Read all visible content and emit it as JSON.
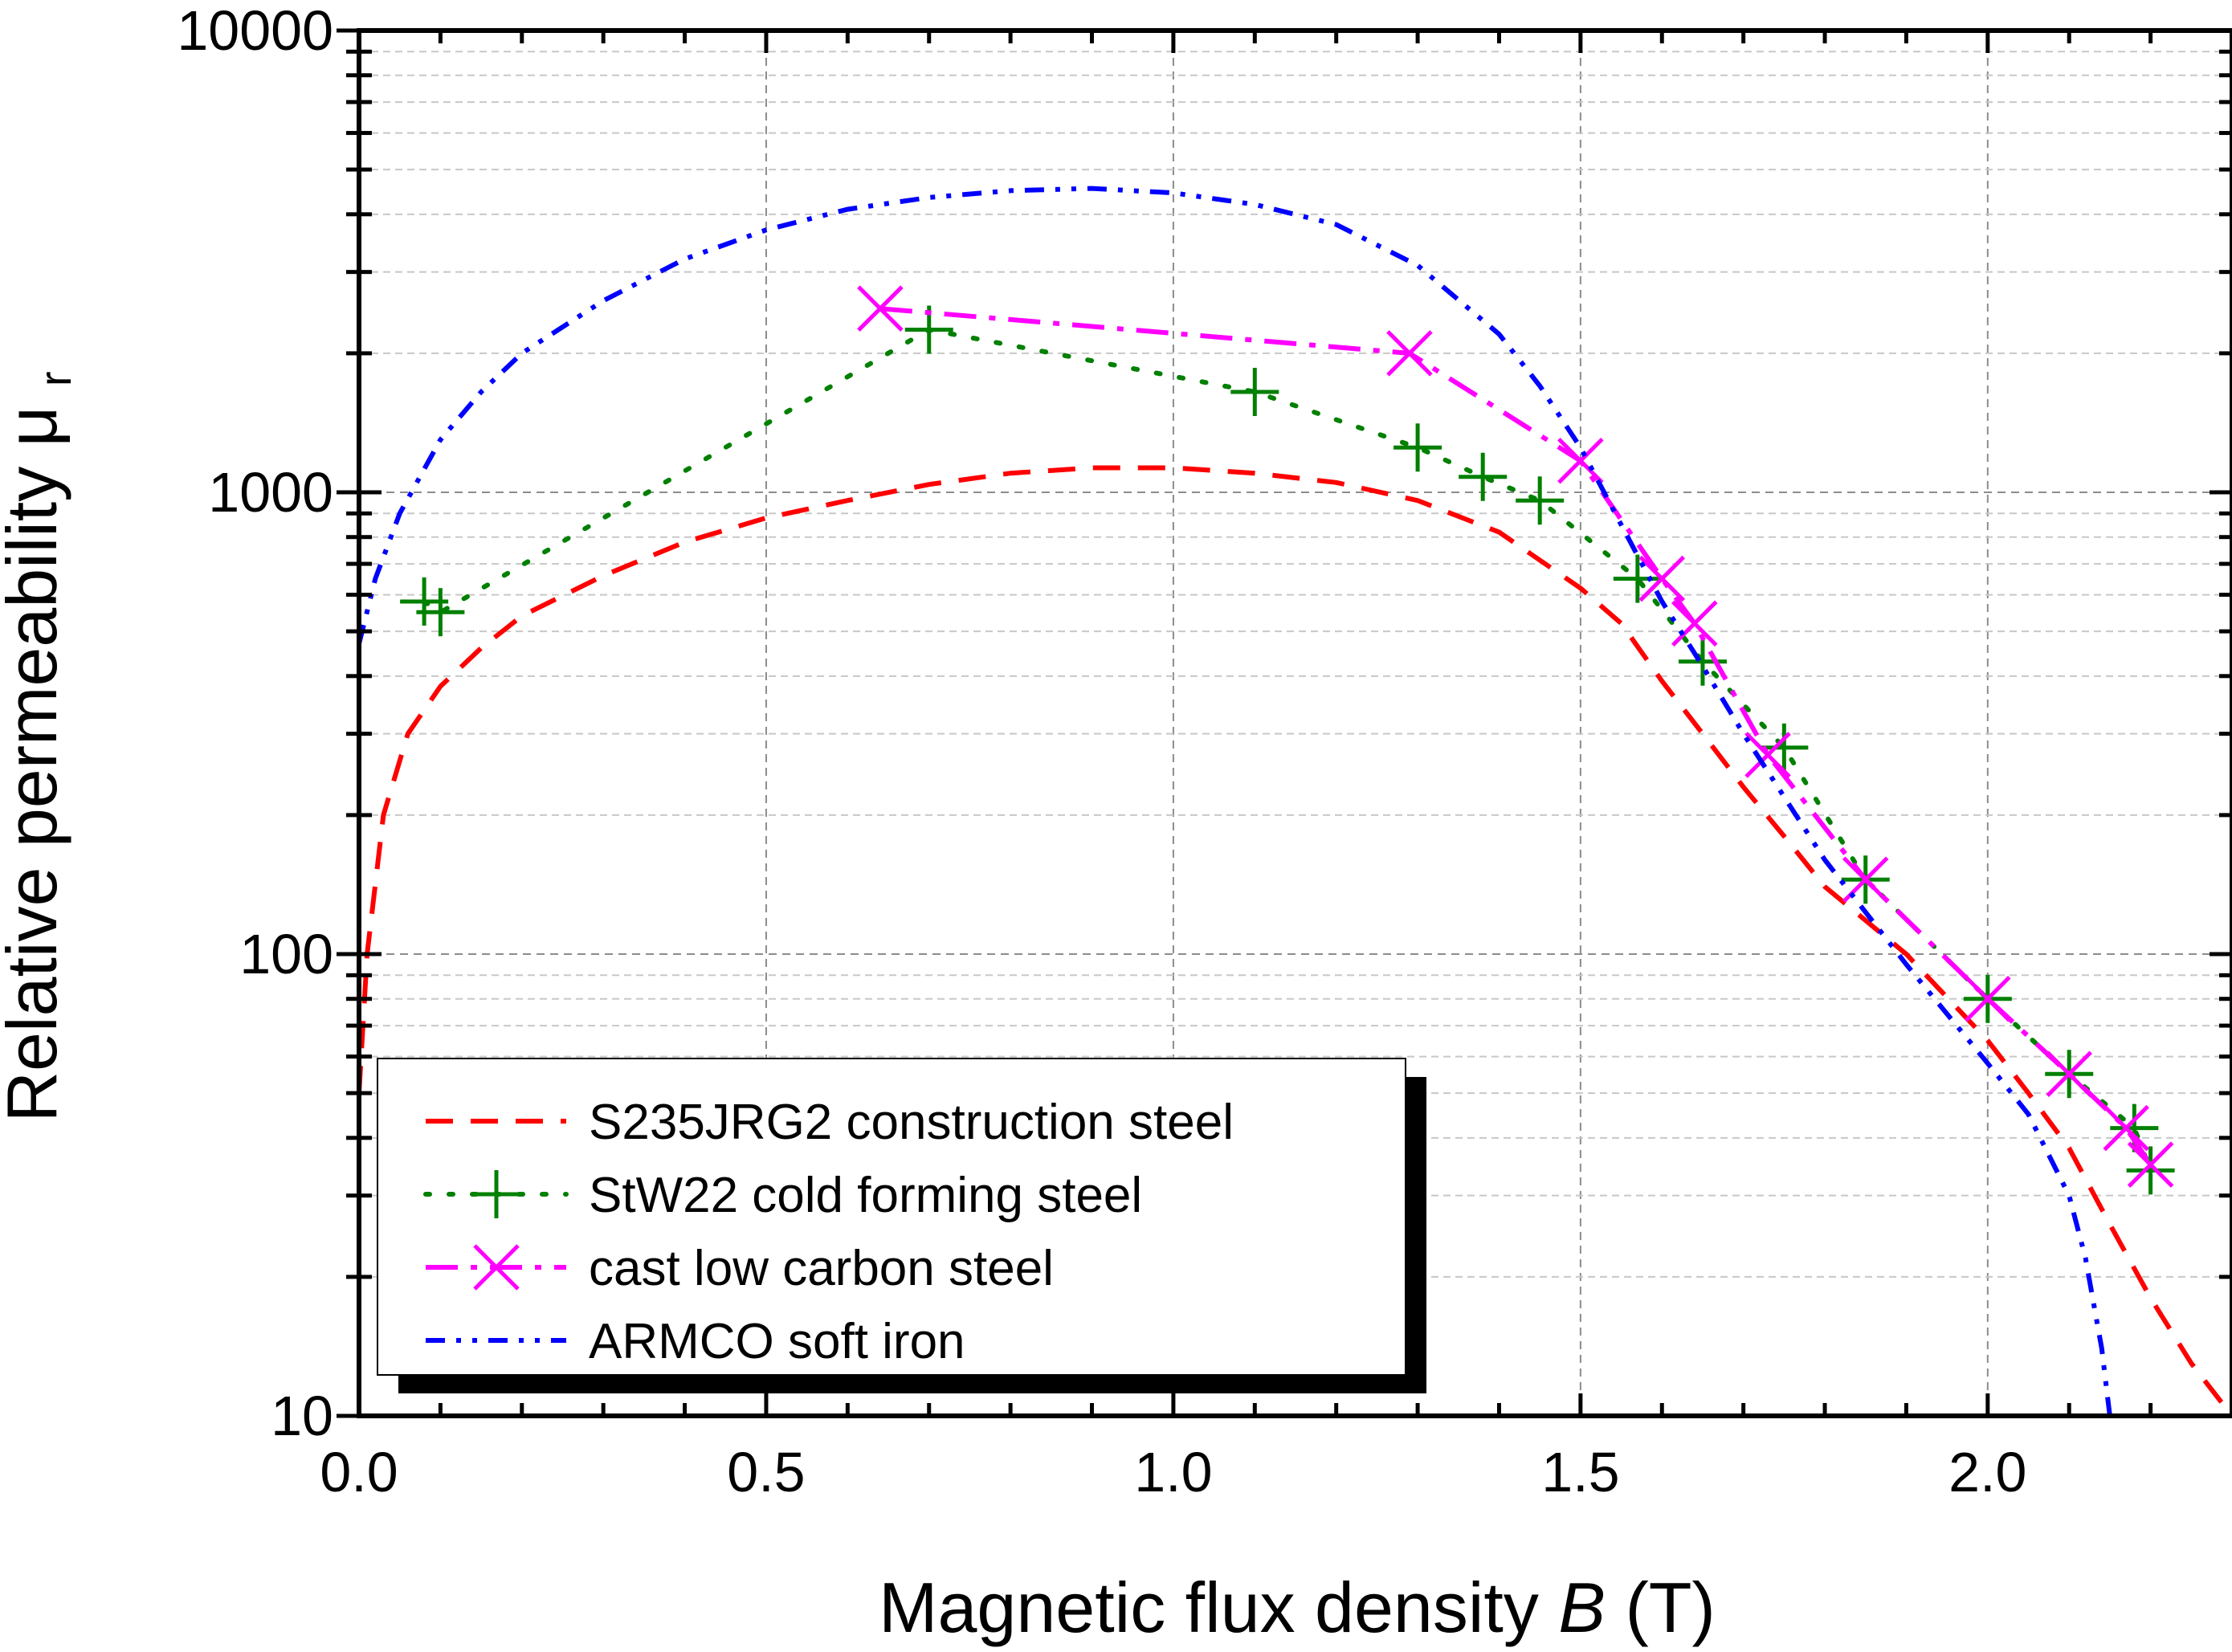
{
  "chart_data": {
    "type": "line",
    "xlabel": "Magnetic flux density",
    "xlabel_var": "B",
    "xlabel_unit": "(T)",
    "ylabel": "Relative permeability μ",
    "ylabel_sub": "r",
    "xlim": [
      0,
      2.3
    ],
    "ylim": [
      10,
      10000
    ],
    "yscale": "log",
    "grid": true,
    "legend_position": "bottom-left",
    "x_ticks": [
      "0.0",
      "0.5",
      "1.0",
      "1.5",
      "2.0"
    ],
    "x_tick_values": [
      0,
      0.5,
      1.0,
      1.5,
      2.0
    ],
    "y_ticks": [
      "10",
      "100",
      "1000",
      "10000"
    ],
    "y_tick_values": [
      10,
      100,
      1000,
      10000
    ],
    "series": [
      {
        "name": "S235JRG2 construction steel",
        "color": "#ff0000",
        "style": "dashed",
        "marker": "none",
        "x": [
          0.0,
          0.01,
          0.03,
          0.06,
          0.1,
          0.15,
          0.2,
          0.3,
          0.4,
          0.5,
          0.6,
          0.7,
          0.8,
          0.9,
          1.0,
          1.1,
          1.2,
          1.3,
          1.4,
          1.5,
          1.55,
          1.6,
          1.65,
          1.7,
          1.75,
          1.8,
          1.9,
          2.0,
          2.05,
          2.1,
          2.15,
          2.2,
          2.25,
          2.3
        ],
        "y": [
          50,
          100,
          200,
          300,
          380,
          460,
          540,
          660,
          780,
          880,
          960,
          1040,
          1100,
          1130,
          1130,
          1100,
          1050,
          960,
          820,
          620,
          520,
          390,
          300,
          230,
          180,
          140,
          100,
          65,
          50,
          38,
          26,
          18,
          13,
          10
        ]
      },
      {
        "name": "StW22 cold forming steel",
        "color": "#008000",
        "style": "dotted",
        "marker": "plus",
        "x": [
          0.08,
          0.1,
          0.7,
          1.1,
          1.3,
          1.38,
          1.45,
          1.57,
          1.65,
          1.75,
          1.85,
          2.0,
          2.1,
          2.18,
          2.2
        ],
        "y": [
          580,
          550,
          2250,
          1650,
          1250,
          1080,
          960,
          650,
          430,
          280,
          145,
          80,
          55,
          42,
          34
        ],
        "markers_at": [
          0,
          1,
          2,
          3,
          4,
          5,
          6,
          7,
          8,
          9,
          10,
          11,
          12,
          13,
          14
        ]
      },
      {
        "name": "cast low carbon steel",
        "color": "#ff00ff",
        "style": "dashdot",
        "marker": "x",
        "x": [
          0.64,
          1.29,
          1.5,
          1.6,
          1.64,
          1.73,
          1.85,
          2.0,
          2.1,
          2.17,
          2.2
        ],
        "y": [
          2500,
          2000,
          1170,
          650,
          520,
          270,
          145,
          80,
          55,
          42,
          35
        ],
        "markers_at": [
          0,
          1,
          2,
          3,
          4,
          5,
          6,
          7,
          8,
          9,
          10
        ]
      },
      {
        "name": "ARMCO soft iron",
        "color": "#0000ff",
        "style": "dashdotdot",
        "marker": "none",
        "x": [
          0.0,
          0.02,
          0.05,
          0.1,
          0.15,
          0.2,
          0.3,
          0.4,
          0.5,
          0.6,
          0.7,
          0.8,
          0.9,
          1.0,
          1.1,
          1.2,
          1.3,
          1.4,
          1.45,
          1.5,
          1.55,
          1.6,
          1.65,
          1.7,
          1.8,
          1.9,
          2.0,
          2.05,
          2.1,
          2.12,
          2.14,
          2.15
        ],
        "y": [
          470,
          650,
          900,
          1300,
          1650,
          2000,
          2600,
          3200,
          3700,
          4100,
          4350,
          4500,
          4550,
          4450,
          4200,
          3800,
          3100,
          2200,
          1700,
          1250,
          850,
          580,
          420,
          300,
          160,
          95,
          58,
          45,
          30,
          22,
          14,
          10
        ]
      }
    ]
  }
}
